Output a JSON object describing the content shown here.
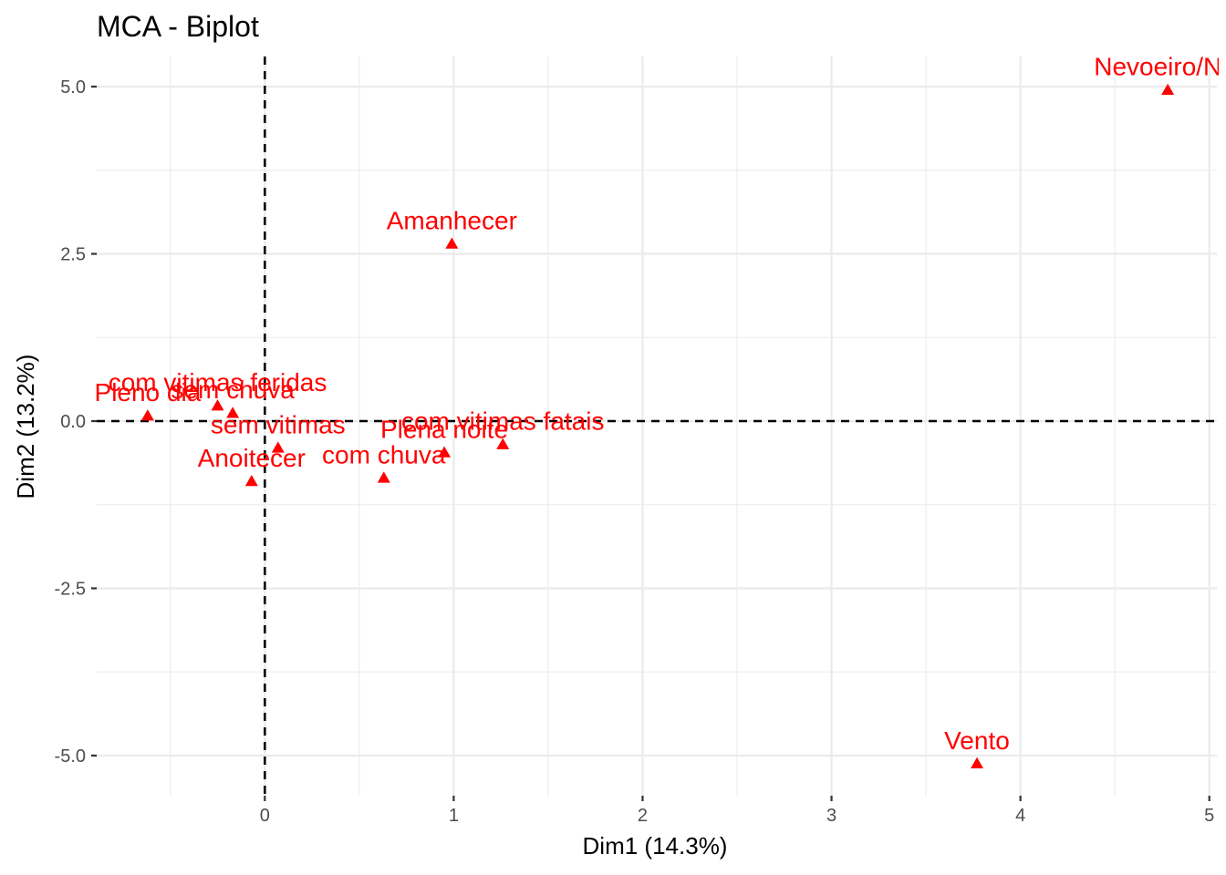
{
  "chart_data": {
    "type": "scatter",
    "title": "MCA - Biplot",
    "xlabel": "Dim1 (14.3%)",
    "ylabel": "Dim2 (13.2%)",
    "xlim": [
      -0.89,
      5.04
    ],
    "ylim": [
      -5.6,
      5.45
    ],
    "x_ticks": [
      0,
      1,
      2,
      3,
      4,
      5
    ],
    "x_tick_labels": [
      "0",
      "1",
      "2",
      "3",
      "4",
      "5"
    ],
    "y_ticks": [
      -5.0,
      -2.5,
      0.0,
      2.5,
      5.0
    ],
    "y_tick_labels": [
      "-5.0",
      "-2.5",
      "0.0",
      "2.5",
      "5.0"
    ],
    "reference_lines": {
      "x": 0,
      "y": 0
    },
    "grid": true,
    "marker": "triangle",
    "point_color": "#ff0000",
    "points": [
      {
        "label": "Nevoeiro/Nel",
        "x": 4.78,
        "y": 4.95
      },
      {
        "label": "Amanhecer",
        "x": 0.99,
        "y": 2.65
      },
      {
        "label": "com vitimas feridas",
        "x": -0.25,
        "y": 0.23
      },
      {
        "label": "sem chuva",
        "x": -0.17,
        "y": 0.12
      },
      {
        "label": "Pleno dia",
        "x": -0.62,
        "y": 0.08
      },
      {
        "label": "sem vitimas",
        "x": 0.07,
        "y": -0.4
      },
      {
        "label": "Anoitecer",
        "x": -0.07,
        "y": -0.9
      },
      {
        "label": "com chuva",
        "x": 0.63,
        "y": -0.85
      },
      {
        "label": "Plena noite",
        "x": 0.95,
        "y": -0.47
      },
      {
        "label": "com vitimas fatais",
        "x": 1.26,
        "y": -0.35
      },
      {
        "label": "Vento",
        "x": 3.77,
        "y": -5.12
      }
    ]
  }
}
